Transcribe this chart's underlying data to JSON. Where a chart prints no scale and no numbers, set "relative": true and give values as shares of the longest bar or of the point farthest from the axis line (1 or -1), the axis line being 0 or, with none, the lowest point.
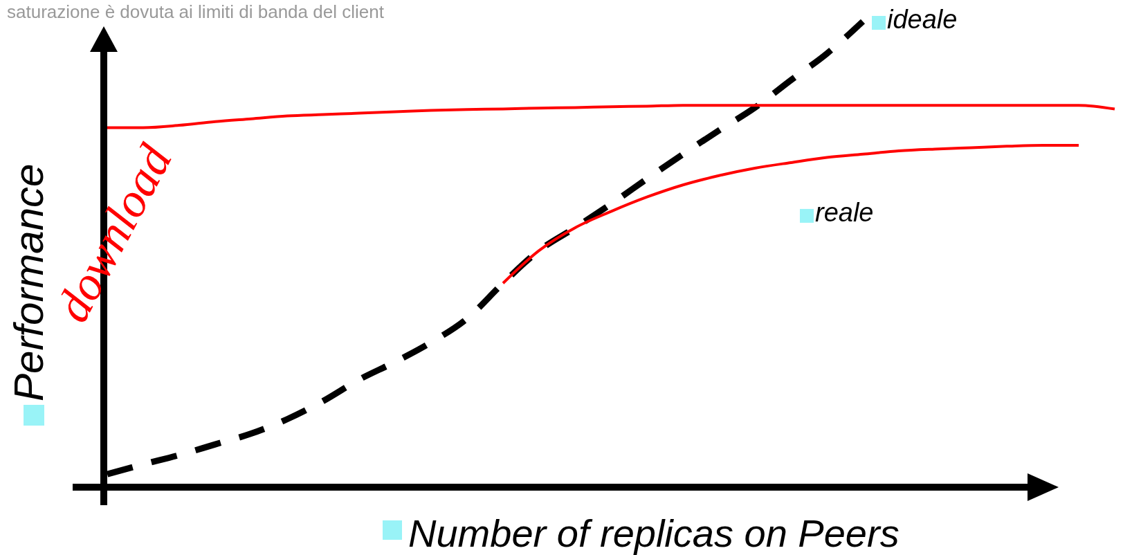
{
  "chart_data": {
    "type": "line",
    "relative": true,
    "title": "saturazione è dovuta ai limiti di banda del client",
    "xlabel": "Number of replicas on Peers",
    "ylabel": "Performance",
    "annotations": [
      "download"
    ],
    "categories": [
      null,
      null,
      null,
      null,
      null,
      null,
      null,
      null,
      null,
      null,
      null,
      null,
      null,
      null,
      null,
      null,
      null,
      null,
      null,
      null,
      null,
      null,
      null,
      null,
      null,
      null,
      null,
      null,
      null
    ],
    "series": [
      {
        "name": "ideale",
        "color": "#000000",
        "line_style": "dashed",
        "values": [
          0.028,
          0.049,
          0.069,
          0.092,
          0.115,
          0.146,
          0.185,
          0.231,
          0.269,
          0.311,
          0.362,
          0.438,
          0.508,
          0.557,
          0.608,
          0.662,
          0.715,
          0.766,
          0.815,
          0.874,
          0.931,
          1.0,
          null,
          null,
          null,
          null,
          null,
          null,
          null
        ]
      },
      {
        "name": "reale",
        "color": "#ff0000",
        "line_style": "solid",
        "values": [
          null,
          null,
          null,
          null,
          null,
          null,
          null,
          null,
          null,
          null,
          null,
          0.438,
          0.508,
          0.557,
          0.592,
          0.623,
          0.649,
          0.669,
          0.685,
          0.697,
          0.708,
          0.715,
          0.722,
          0.726,
          0.729,
          0.732,
          0.734,
          0.734,
          null
        ]
      },
      {
        "color": "#ff0000",
        "line_style": "solid",
        "values": [
          0.772,
          0.772,
          0.777,
          0.785,
          0.791,
          0.797,
          0.8,
          0.803,
          0.806,
          0.809,
          0.811,
          0.812,
          0.814,
          0.815,
          0.817,
          0.818,
          0.82,
          0.82,
          0.82,
          0.82,
          0.82,
          0.82,
          0.82,
          0.82,
          0.82,
          0.82,
          0.82,
          0.82,
          0.812
        ]
      }
    ],
    "legend": false,
    "marker": "none"
  }
}
